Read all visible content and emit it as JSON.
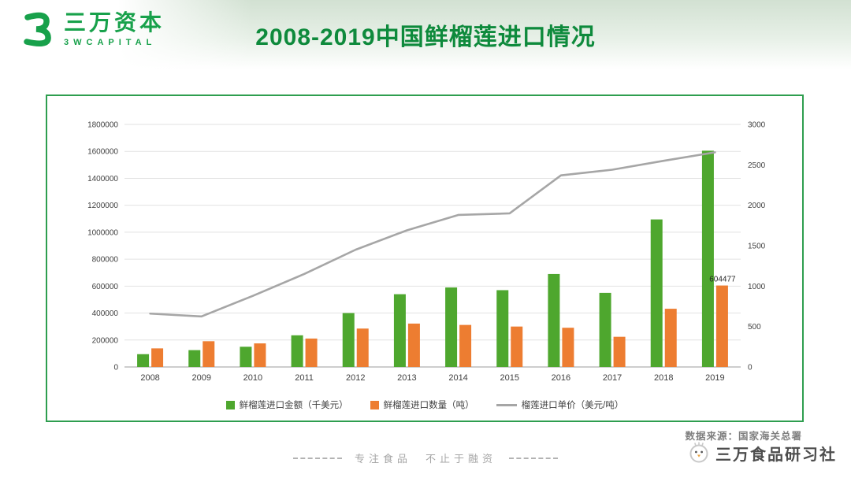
{
  "header": {
    "logo": {
      "name": "三万资本",
      "sub": "3WCAPITAL"
    },
    "title": "2008-2019中国鲜榴莲进口情况"
  },
  "colors": {
    "brand_green": "#18a14b",
    "title_green": "#0e8a3c",
    "panel_border": "#2e9e4f",
    "bar_green": "#4ea72e",
    "bar_orange": "#ed7d31",
    "line_gray": "#a6a6a6"
  },
  "chart_data": {
    "type": "bar",
    "subtype": "combo-bar-line",
    "title": "2008-2019中国鲜榴莲进口情况",
    "categories": [
      "2008",
      "2009",
      "2010",
      "2011",
      "2012",
      "2013",
      "2014",
      "2015",
      "2016",
      "2017",
      "2018",
      "2019"
    ],
    "series": [
      {
        "name": "鲜榴莲进口金额（千美元）",
        "type": "bar",
        "axis": "left",
        "color": "#4ea72e",
        "values": [
          95000,
          125000,
          150000,
          235000,
          400000,
          540000,
          590000,
          570000,
          690000,
          550000,
          1095000,
          1605000
        ]
      },
      {
        "name": "鲜榴莲进口数量（吨）",
        "type": "bar",
        "axis": "left",
        "color": "#ed7d31",
        "values": [
          138000,
          191000,
          175000,
          211000,
          285000,
          322000,
          312000,
          300000,
          291000,
          224000,
          432000,
          604477
        ]
      },
      {
        "name": "榴莲进口单价（美元/吨）",
        "type": "line",
        "axis": "right",
        "color": "#a6a6a6",
        "values": [
          660,
          625,
          880,
          1150,
          1450,
          1690,
          1880,
          1900,
          2370,
          2440,
          2550,
          2655
        ]
      }
    ],
    "left_axis": {
      "min": 0,
      "max": 1800000,
      "step": 200000
    },
    "right_axis": {
      "min": 0,
      "max": 3000,
      "step": 500
    },
    "data_labels": [
      {
        "series": 1,
        "category": "2019",
        "text": "604477"
      }
    ],
    "grid": true,
    "legend_position": "bottom"
  },
  "footer": {
    "source": "数据来源：国家海关总署",
    "brand": "三万食品研习社",
    "slogan": "专注食品　不止于融资"
  }
}
